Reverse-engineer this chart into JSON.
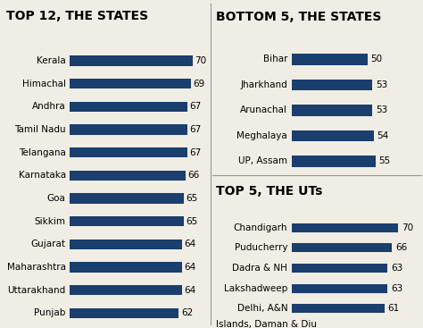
{
  "left_title": "TOP 12, THE STATES",
  "left_states": [
    "Kerala",
    "Himachal",
    "Andhra",
    "Tamil Nadu",
    "Telangana",
    "Karnataka",
    "Goa",
    "Sikkim",
    "Gujarat",
    "Maharashtra",
    "Uttarakhand",
    "Punjab"
  ],
  "left_values": [
    70,
    69,
    67,
    67,
    67,
    66,
    65,
    65,
    64,
    64,
    64,
    62
  ],
  "top_right_title": "BOTTOM 5, THE STATES",
  "top_right_states": [
    "Bihar",
    "Jharkhand",
    "Arunachal",
    "Meghalaya",
    "UP, Assam"
  ],
  "top_right_values": [
    50,
    53,
    53,
    54,
    55
  ],
  "bot_right_title": "TOP 5, THE UTs",
  "bot_right_states": [
    "Chandigarh",
    "Puducherry",
    "Dadra & NH",
    "Lakshadweep",
    "Delhi, A&N"
  ],
  "bot_right_last_label": "Islands, Daman & Diu",
  "bot_right_values": [
    70,
    66,
    63,
    63,
    61
  ],
  "bar_color": "#1a3e6e",
  "bg_color": "#f0ede4",
  "title_color": "#000000",
  "text_color": "#000000",
  "divider_color": "#999999",
  "fig_w": 4.74,
  "fig_h": 3.67,
  "dpi": 100
}
